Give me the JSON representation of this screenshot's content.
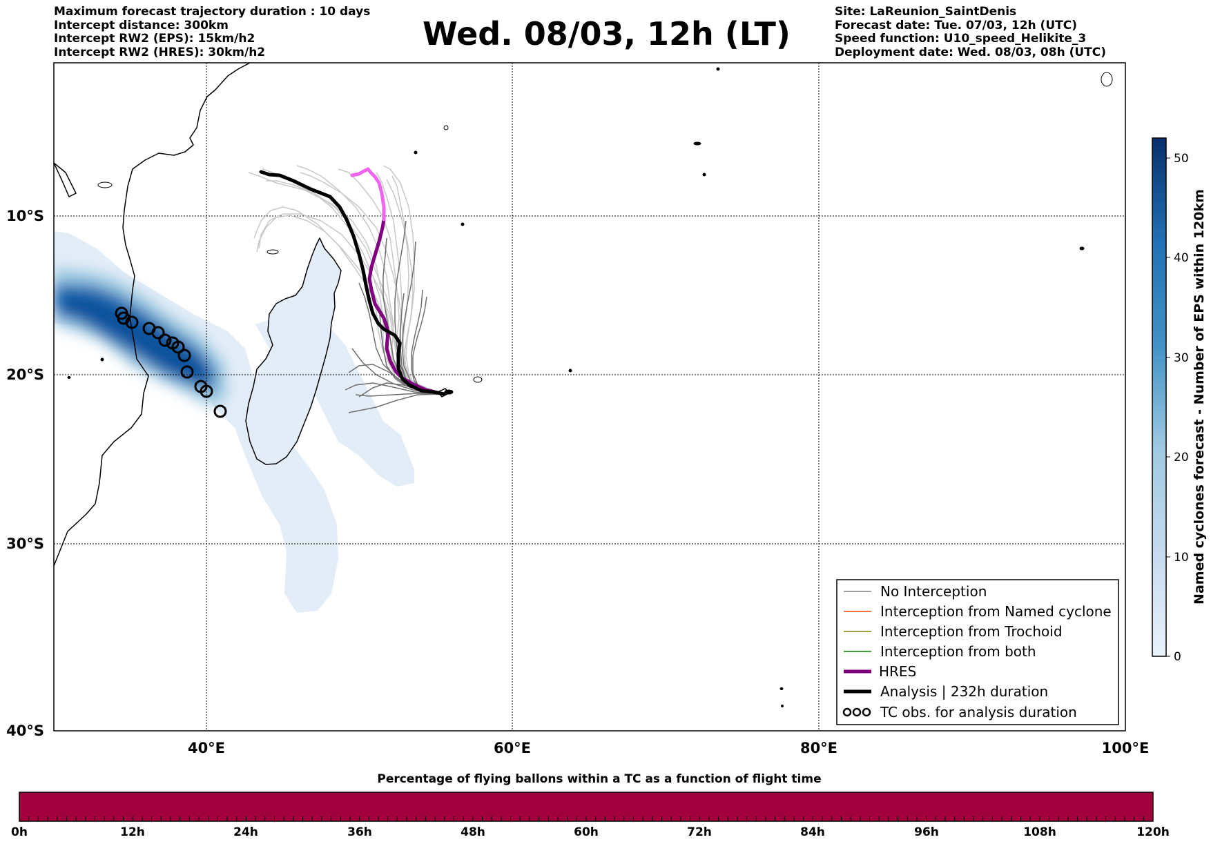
{
  "header": {
    "left": [
      "Maximum forecast trajectory duration : 10 days",
      "Intercept distance: 300km",
      "Intercept RW2 (EPS):  15km/h2",
      "Intercept RW2 (HRES): 30km/h2"
    ],
    "title": "Wed. 08/03, 12h (LT)",
    "right": [
      "Site: LaReunion_SaintDenis",
      "Forecast date: Tue. 07/03, 12h (UTC)",
      "Speed function: U10_speed_Helikite_3",
      "Deployment date: Wed. 08/03, 08h (UTC)"
    ]
  },
  "map": {
    "x_ticks": [
      "40°E",
      "60°E",
      "80°E",
      "100°E"
    ],
    "y_ticks": [
      "10°S",
      "20°S",
      "30°S",
      "40°S"
    ],
    "lon_range": [
      30,
      100
    ],
    "lat_range": [
      -40,
      -0.5
    ],
    "grid": true
  },
  "legend": {
    "items": [
      {
        "label": "No Interception",
        "color": "#808080",
        "style": "thin"
      },
      {
        "label": "Interception from Named cyclone",
        "color": "#ff4500",
        "style": "thin"
      },
      {
        "label": "Interception from Trochoid",
        "color": "#808000",
        "style": "thin"
      },
      {
        "label": "Interception from both",
        "color": "#008000",
        "style": "thin"
      },
      {
        "label": "HRES",
        "color": "#800080",
        "style": "thick"
      },
      {
        "label": "Analysis | 232h duration",
        "color": "#000000",
        "style": "thick"
      },
      {
        "label": "TC obs. for analysis duration",
        "color": "#000000",
        "style": "markers"
      }
    ]
  },
  "colorbar_right": {
    "label": "Named cyclones forecast - Number of EPS within 120km",
    "ticks": [
      "0",
      "10",
      "20",
      "30",
      "40",
      "50"
    ],
    "range": [
      0,
      52
    ],
    "colors": [
      "#eaf2fb",
      "#08306b"
    ]
  },
  "colorbar_bottom": {
    "title": "Percentage of flying ballons within a TC as a function of flight time",
    "ticks": [
      "0h",
      "12h",
      "24h",
      "36h",
      "48h",
      "60h",
      "72h",
      "84h",
      "96h",
      "108h",
      "120h"
    ],
    "fill_color": "#a0003c"
  },
  "chart_data": {
    "type": "line",
    "analysis_track": [
      [
        43.6,
        -7.2
      ],
      [
        45.5,
        -7.7
      ],
      [
        47.8,
        -8.8
      ],
      [
        49.3,
        -10.3
      ],
      [
        50.2,
        -12.0
      ],
      [
        50.9,
        -14.2
      ],
      [
        51.0,
        -15.0
      ],
      [
        51.3,
        -16.2
      ],
      [
        51.9,
        -17.2
      ],
      [
        52.6,
        -17.7
      ],
      [
        52.5,
        -19.3
      ],
      [
        53.0,
        -20.1
      ],
      [
        54.0,
        -20.6
      ],
      [
        55.5,
        -20.9
      ]
    ],
    "hres_track": [
      [
        49.6,
        -7.6
      ],
      [
        50.6,
        -7.3
      ],
      [
        51.1,
        -7.6
      ],
      [
        51.5,
        -9.1
      ],
      [
        51.7,
        -10.3
      ],
      [
        51.7,
        -11.2
      ],
      [
        51.4,
        -13.1
      ],
      [
        51.0,
        -14.6
      ],
      [
        51.1,
        -16.2
      ],
      [
        51.7,
        -17.4
      ],
      [
        51.8,
        -19.1
      ],
      [
        52.4,
        -19.8
      ],
      [
        53.4,
        -20.4
      ],
      [
        55.5,
        -20.9
      ]
    ],
    "tc_obs": [
      [
        34.5,
        -16.3
      ],
      [
        34.8,
        -16.7
      ],
      [
        35.2,
        -17.0
      ],
      [
        36.3,
        -17.3
      ],
      [
        36.9,
        -17.6
      ],
      [
        37.4,
        -18.1
      ],
      [
        37.9,
        -18.2
      ],
      [
        38.3,
        -18.4
      ],
      [
        38.7,
        -18.9
      ],
      [
        38.9,
        -19.9
      ],
      [
        39.8,
        -20.7
      ],
      [
        40.1,
        -21.0
      ],
      [
        40.9,
        -22.2
      ]
    ]
  }
}
